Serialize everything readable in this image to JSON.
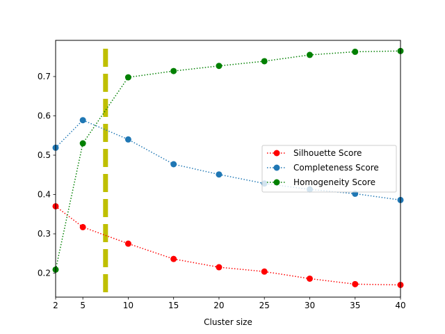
{
  "chart_data": {
    "type": "line",
    "title": "",
    "xlabel": "Cluster size",
    "ylabel": "",
    "x": [
      2,
      5,
      10,
      15,
      20,
      25,
      30,
      35,
      40
    ],
    "xticks": [
      "2",
      "5",
      "10",
      "15",
      "20",
      "25",
      "30",
      "35",
      "40"
    ],
    "yticks": [
      "0.2",
      "0.3",
      "0.4",
      "0.5",
      "0.6",
      "0.7"
    ],
    "xlim": [
      2,
      40
    ],
    "ylim": [
      0.139,
      0.792
    ],
    "grid": false,
    "legend_position": "center-right",
    "series": [
      {
        "name": "Silhouette Score",
        "color": "#ff0000",
        "line_style": "dotted",
        "marker": "circle",
        "values": [
          0.37,
          0.317,
          0.275,
          0.236,
          0.215,
          0.204,
          0.186,
          0.172,
          0.17
        ]
      },
      {
        "name": "Completeness Score",
        "color": "#1f77b4",
        "line_style": "dotted",
        "marker": "circle",
        "values": [
          0.519,
          0.589,
          0.54,
          0.477,
          0.451,
          0.428,
          0.413,
          0.402,
          0.386
        ]
      },
      {
        "name": "Homogeneity Score",
        "color": "#008000",
        "line_style": "dotted",
        "marker": "circle",
        "values": [
          0.209,
          0.53,
          0.698,
          0.714,
          0.727,
          0.739,
          0.755,
          0.763,
          0.765
        ]
      }
    ],
    "vertical_line": {
      "x": 7.5,
      "color": "#bfbf00",
      "line_style": "dashed"
    }
  }
}
